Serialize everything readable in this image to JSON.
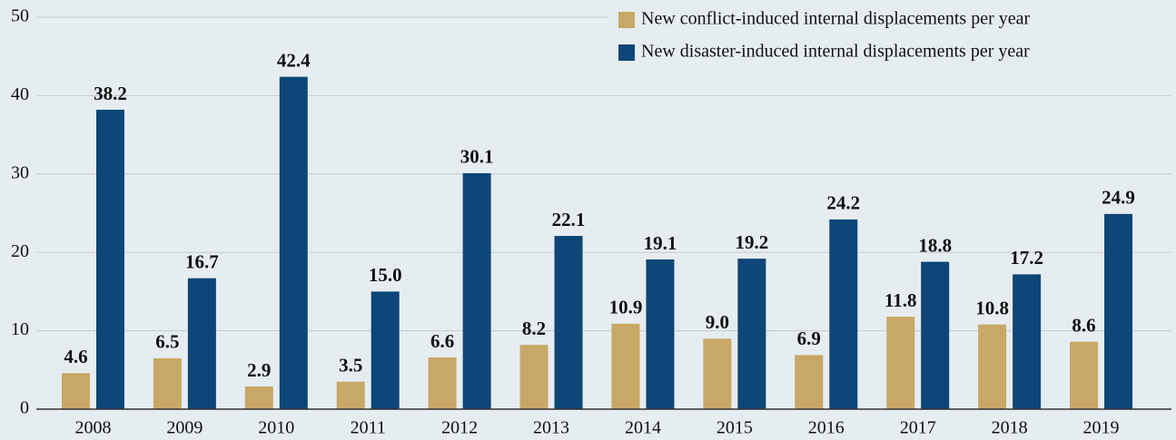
{
  "chart_data": {
    "type": "bar",
    "categories": [
      "2008",
      "2009",
      "2010",
      "2011",
      "2012",
      "2013",
      "2014",
      "2015",
      "2016",
      "2017",
      "2018",
      "2019"
    ],
    "series": [
      {
        "name": "New conflict-induced internal displacements per year",
        "color": "#c8a866",
        "values": [
          4.6,
          6.5,
          2.9,
          3.5,
          6.6,
          8.2,
          10.9,
          9.0,
          6.9,
          11.8,
          10.8,
          8.6
        ],
        "value_labels": [
          "4.6",
          "6.5",
          "2.9",
          "3.5",
          "6.6",
          "8.2",
          "10.9",
          "9.0",
          "6.9",
          "11.8",
          "10.8",
          "8.6"
        ]
      },
      {
        "name": "New disaster-induced internal displacements per year",
        "color": "#0d4677",
        "values": [
          38.2,
          16.7,
          42.4,
          15.0,
          30.1,
          22.1,
          19.1,
          19.2,
          24.2,
          18.8,
          17.2,
          24.9
        ],
        "value_labels": [
          "38.2",
          "16.7",
          "42.4",
          "15.0",
          "30.1",
          "22.1",
          "19.1",
          "19.2",
          "24.2",
          "18.8",
          "17.2",
          "24.9"
        ]
      }
    ],
    "ylim": [
      0,
      50
    ],
    "yticks": [
      0,
      10,
      20,
      30,
      40,
      50
    ],
    "grid": true,
    "legend": "upper right"
  }
}
